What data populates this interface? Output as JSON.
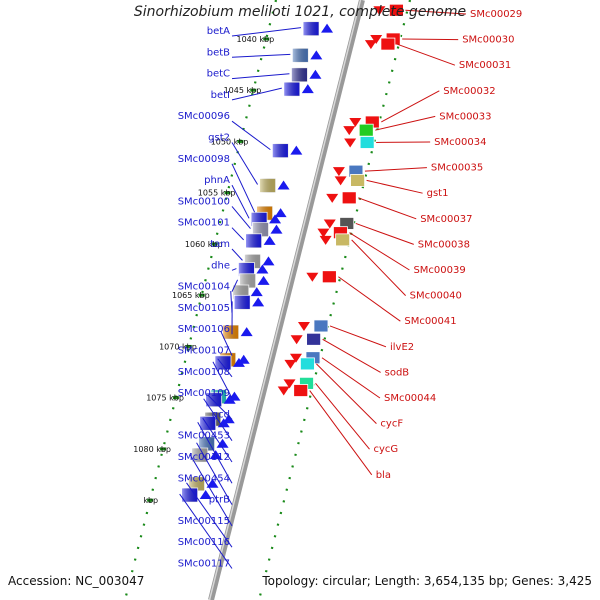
{
  "title": "Sinorhizobium meliloti 1021, complete genome",
  "accession": "Accession: NC_003047",
  "topology": "Topology: circular; Length: 3,654,135 bp; Genes: 3,425",
  "colors": {
    "forward_label": "#1a1acc",
    "reverse_label": "#cc1111",
    "forward_arrow": "#1a1aee",
    "reverse_arrow": "#ee1111",
    "backbone": "#888888",
    "tick": "#1a8a1a"
  },
  "kbp_ticks": [
    {
      "label": "1040 kbp",
      "kbp": 1040
    },
    {
      "label": "1045 kbp",
      "kbp": 1045
    },
    {
      "label": "1050 kbp",
      "kbp": 1050
    },
    {
      "label": "1055 kbp",
      "kbp": 1055
    },
    {
      "label": "1060 kbp",
      "kbp": 1060
    },
    {
      "label": "1065 kbp",
      "kbp": 1065
    },
    {
      "label": "1070 kbp",
      "kbp": 1070
    },
    {
      "label": "1075 kbp",
      "kbp": 1075
    },
    {
      "label": "1080 kbp",
      "kbp": 1080
    },
    {
      "label": "kbp",
      "kbp": 1085
    }
  ],
  "forward_genes": [
    {
      "name": "betA",
      "kbp": 1038.9,
      "color": "#1a1aee"
    },
    {
      "name": "betB",
      "kbp": 1041.5,
      "color": "#4a78c0"
    },
    {
      "name": "betC",
      "kbp": 1043.4,
      "color": "#333399"
    },
    {
      "name": "betI",
      "kbp": 1044.8,
      "color": "#1a1aee"
    },
    {
      "name": "SMc00096",
      "kbp": 1050.8,
      "color": "#1a1aee"
    },
    {
      "name": "gst2",
      "kbp": 1054.2,
      "color": "#c8b864"
    },
    {
      "name": "SMc00098",
      "kbp": 1056.9,
      "color": "#ee8800"
    },
    {
      "name": "phnA",
      "kbp": 1057.5,
      "color": "#1a1aee"
    },
    {
      "name": "SMc00100",
      "kbp": 1058.5,
      "color": "#9999b8"
    },
    {
      "name": "SMc00101",
      "kbp": 1059.6,
      "color": "#1a1aee"
    },
    {
      "name": "tam",
      "kbp": 1061.6,
      "color": "#aaaaaa"
    },
    {
      "name": "dhe",
      "kbp": 1062.4,
      "color": "#1a1aee"
    },
    {
      "name": "SMc00104",
      "kbp": 1063.5,
      "color": "#b0b0b0"
    },
    {
      "name": "SMc00105",
      "kbp": 1064.6,
      "color": "#aaaaaa"
    },
    {
      "name": "SMc00106",
      "kbp": 1065.6,
      "color": "#1a1aee"
    },
    {
      "name": "SMc00107",
      "kbp": 1068.5,
      "color": "#ee8800"
    },
    {
      "name": "SMc00108",
      "kbp": 1071.2,
      "color": "#ee8800"
    },
    {
      "name": "SMc00109",
      "kbp": 1071.5,
      "color": "#1a1aee"
    },
    {
      "name": "gcd",
      "kbp": 1074.8,
      "color": "#22c8c8"
    },
    {
      "name": "SMc00453",
      "kbp": 1075.1,
      "color": "#1a1aee"
    },
    {
      "name": "SMc00112",
      "kbp": 1077.0,
      "color": "#666666"
    },
    {
      "name": "SMc00454",
      "kbp": 1077.4,
      "color": "#1a1aee"
    },
    {
      "name": "ptrB",
      "kbp": 1079.4,
      "color": "#4a78c0"
    },
    {
      "name": "SMc00115",
      "kbp": 1080.5,
      "color": "#aaaaaa"
    },
    {
      "name": "SMc00116",
      "kbp": 1083.3,
      "color": "#c8b864"
    },
    {
      "name": "SMc00117",
      "kbp": 1084.4,
      "color": "#1a1aee"
    }
  ],
  "reverse_genes": [
    {
      "name": "SMc00029",
      "kbp": 1037.2,
      "color": "#ee1111"
    },
    {
      "name": "SMc00030",
      "kbp": 1040.0,
      "color": "#ee1111"
    },
    {
      "name": "SMc00031",
      "kbp": 1040.5,
      "color": "#ee1111"
    },
    {
      "name": "SMc00032",
      "kbp": 1048.1,
      "color": "#ee1111"
    },
    {
      "name": "SMc00033",
      "kbp": 1048.9,
      "color": "#22cc22"
    },
    {
      "name": "SMc00034",
      "kbp": 1050.1,
      "color": "#22dddd"
    },
    {
      "name": "SMc00035",
      "kbp": 1052.9,
      "color": "#4a78c0"
    },
    {
      "name": "gst1",
      "kbp": 1053.8,
      "color": "#c8b864"
    },
    {
      "name": "SMc00037",
      "kbp": 1055.5,
      "color": "#ee1111"
    },
    {
      "name": "SMc00038",
      "kbp": 1058.0,
      "color": "#555555"
    },
    {
      "name": "SMc00039",
      "kbp": 1058.9,
      "color": "#ee1111"
    },
    {
      "name": "SMc00040",
      "kbp": 1059.6,
      "color": "#c8b864"
    },
    {
      "name": "SMc00041",
      "kbp": 1063.2,
      "color": "#ee1111"
    },
    {
      "name": "ilvE2",
      "kbp": 1068.0,
      "color": "#4a78c0"
    },
    {
      "name": "sodB",
      "kbp": 1069.3,
      "color": "#333399"
    },
    {
      "name": "SMc00044",
      "kbp": 1071.1,
      "color": "#4a78c0"
    },
    {
      "name": "cycF",
      "kbp": 1071.7,
      "color": "#22dddd"
    },
    {
      "name": "cycG",
      "kbp": 1073.6,
      "color": "#22dd99"
    },
    {
      "name": "bla",
      "kbp": 1074.3,
      "color": "#ee1111"
    }
  ]
}
